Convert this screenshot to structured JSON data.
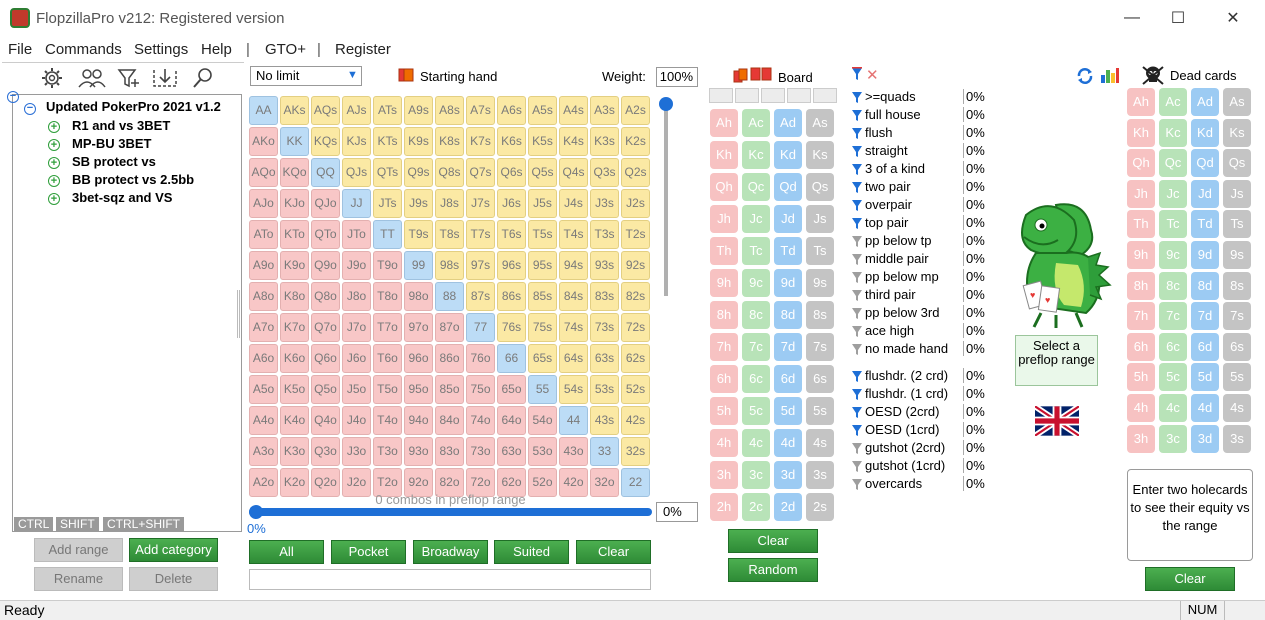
{
  "window": {
    "title": "FlopzillaPro v212: Registered version",
    "minimize": "—",
    "maximize": "☐",
    "close": "✕"
  },
  "menu": {
    "file": "File",
    "commands": "Commands",
    "settings": "Settings",
    "help": "Help",
    "sep1": "|",
    "gto": "GTO+",
    "sep2": "|",
    "register": "Register"
  },
  "tree": {
    "root": "Updated PokerPro 2021 v1.2",
    "items": [
      "R1 and vs 3BET",
      "MP-BU 3BET",
      "SB protect vs",
      "BB protect vs 2.5bb",
      "3bet-sqz and VS"
    ]
  },
  "modifiers": {
    "ctrl": "CTRL",
    "shift": "SHIFT",
    "ctrlshift": "CTRL+SHIFT"
  },
  "left_buttons": {
    "add_range": "Add range",
    "add_category": "Add category",
    "rename": "Rename",
    "delete": "Delete"
  },
  "range": {
    "mode": "No limit",
    "starting_hand": "Starting hand",
    "weight_label": "Weight:",
    "weight_value": "100%",
    "combos_text": "0 combos in preflop range",
    "slider_pct": "0%",
    "slider_input": "0%"
  },
  "range_buttons": {
    "all": "All",
    "pocket": "Pocket",
    "broadway": "Broadway",
    "suited": "Suited",
    "clear": "Clear"
  },
  "grid": {
    "ranks": [
      "A",
      "K",
      "Q",
      "J",
      "T",
      "9",
      "8",
      "7",
      "6",
      "5",
      "4",
      "3",
      "2"
    ]
  },
  "board": {
    "label": "Board",
    "clear": "Clear",
    "random": "Random"
  },
  "stats": {
    "made": [
      {
        "label": ">=quads",
        "value": "0%",
        "filter": "on"
      },
      {
        "label": "full house",
        "value": "0%",
        "filter": "on"
      },
      {
        "label": "flush",
        "value": "0%",
        "filter": "on"
      },
      {
        "label": "straight",
        "value": "0%",
        "filter": "on"
      },
      {
        "label": "3 of a kind",
        "value": "0%",
        "filter": "on"
      },
      {
        "label": "two pair",
        "value": "0%",
        "filter": "on"
      },
      {
        "label": "overpair",
        "value": "0%",
        "filter": "on"
      },
      {
        "label": "top pair",
        "value": "0%",
        "filter": "on"
      },
      {
        "label": "pp below tp",
        "value": "0%",
        "filter": "off"
      },
      {
        "label": "middle pair",
        "value": "0%",
        "filter": "off"
      },
      {
        "label": "pp below mp",
        "value": "0%",
        "filter": "off"
      },
      {
        "label": "third pair",
        "value": "0%",
        "filter": "off"
      },
      {
        "label": "pp below 3rd",
        "value": "0%",
        "filter": "off"
      },
      {
        "label": "ace high",
        "value": "0%",
        "filter": "off"
      },
      {
        "label": "no made hand",
        "value": "0%",
        "filter": "off"
      }
    ],
    "draws": [
      {
        "label": "flushdr. (2 crd)",
        "value": "0%",
        "filter": "on"
      },
      {
        "label": "flushdr. (1 crd)",
        "value": "0%",
        "filter": "on"
      },
      {
        "label": "OESD (2crd)",
        "value": "0%",
        "filter": "on"
      },
      {
        "label": "OESD (1crd)",
        "value": "0%",
        "filter": "on"
      },
      {
        "label": "gutshot (2crd)",
        "value": "0%",
        "filter": "off"
      },
      {
        "label": "gutshot (1crd)",
        "value": "0%",
        "filter": "off"
      },
      {
        "label": "overcards",
        "value": "0%",
        "filter": "off"
      }
    ]
  },
  "select_preflop": "Select a preflop range",
  "dead": {
    "label": "Dead cards",
    "clear": "Clear"
  },
  "enter_text": "Enter two holecards to see their equity vs the range",
  "cards": {
    "ranks": [
      "A",
      "K",
      "Q",
      "J",
      "T",
      "9",
      "8",
      "7",
      "6",
      "5",
      "4",
      "3",
      "2"
    ],
    "suits": [
      "h",
      "c",
      "d",
      "s"
    ]
  },
  "status": {
    "text": "Ready",
    "num": "NUM"
  },
  "colors": {
    "accent": "#1e6fd6",
    "green": "#2e8b36",
    "pair": "#bcdcf6",
    "suited": "#fbe9a4",
    "offsuit": "#f8c7c7"
  }
}
